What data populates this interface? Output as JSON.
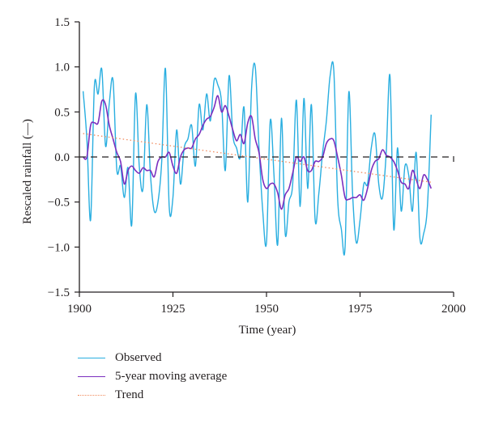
{
  "chart_data": {
    "type": "line",
    "xlabel": "Time (year)",
    "ylabel": "Rescaled rainfall (—)",
    "xlim": [
      1900,
      2000
    ],
    "ylim": [
      -1.5,
      1.5
    ],
    "xticks": [
      "1900",
      "1925",
      "1950",
      "1975",
      "2000"
    ],
    "yticks": [
      "1.5",
      "1.0",
      "0.5",
      "0.0",
      "−0.5",
      "−1.0",
      "−1.5"
    ],
    "zero_line": 0,
    "grid": false,
    "legend_position": "bottom",
    "series": [
      {
        "name": "Observed",
        "color": "#29aee0",
        "style": "solid",
        "x": [
          1901,
          1902,
          1903,
          1904,
          1905,
          1906,
          1907,
          1908,
          1909,
          1910,
          1911,
          1912,
          1913,
          1914,
          1915,
          1916,
          1917,
          1918,
          1919,
          1920,
          1921,
          1922,
          1923,
          1924,
          1925,
          1926,
          1927,
          1928,
          1929,
          1930,
          1931,
          1932,
          1933,
          1934,
          1935,
          1936,
          1937,
          1938,
          1939,
          1940,
          1941,
          1942,
          1943,
          1944,
          1945,
          1946,
          1947,
          1948,
          1949,
          1950,
          1951,
          1952,
          1953,
          1954,
          1955,
          1956,
          1957,
          1958,
          1959,
          1960,
          1961,
          1962,
          1963,
          1964,
          1965,
          1966,
          1967,
          1968,
          1969,
          1970,
          1971,
          1972,
          1973,
          1974,
          1975,
          1976,
          1977,
          1978,
          1979,
          1980,
          1981,
          1982,
          1983,
          1984,
          1985,
          1986,
          1987,
          1988,
          1989,
          1990,
          1991,
          1992,
          1993,
          1994
        ],
        "y": [
          0.73,
          0.2,
          -0.7,
          0.78,
          0.7,
          0.97,
          0.12,
          0.6,
          0.85,
          -0.14,
          -0.1,
          -0.45,
          -0.12,
          -0.75,
          0.7,
          -0.1,
          -0.35,
          0.58,
          -0.2,
          -0.6,
          -0.5,
          -0.05,
          0.98,
          -0.55,
          -0.45,
          0.3,
          -0.3,
          0.1,
          0.2,
          0.35,
          -0.1,
          0.58,
          0.3,
          0.7,
          0.4,
          0.85,
          0.8,
          0.6,
          -0.15,
          0.9,
          0.25,
          0.1,
          0.0,
          0.55,
          -0.5,
          0.75,
          1.0,
          0.1,
          -0.6,
          -0.95,
          0.4,
          -0.2,
          -0.97,
          0.43,
          -0.85,
          -0.5,
          -0.3,
          0.63,
          -0.55,
          0.65,
          -0.35,
          0.58,
          -0.7,
          -0.4,
          0.05,
          0.4,
          0.9,
          0.95,
          -0.45,
          -0.8,
          -1.0,
          0.72,
          -0.4,
          -0.95,
          -0.7,
          -0.3,
          -0.3,
          0.1,
          0.25,
          -0.3,
          -0.45,
          0.05,
          0.9,
          -0.8,
          0.1,
          -0.6,
          -0.1,
          -0.2,
          -0.6,
          0.05,
          -0.9,
          -0.85,
          -0.55,
          0.47
        ]
      },
      {
        "name": "5-year moving average",
        "color": "#7b2fbf",
        "style": "solid",
        "x": [
          1901,
          1902,
          1903,
          1904,
          1905,
          1906,
          1907,
          1908,
          1909,
          1910,
          1911,
          1912,
          1913,
          1914,
          1915,
          1916,
          1917,
          1918,
          1919,
          1920,
          1921,
          1922,
          1923,
          1924,
          1925,
          1926,
          1927,
          1928,
          1929,
          1930,
          1931,
          1932,
          1933,
          1934,
          1935,
          1936,
          1937,
          1938,
          1939,
          1940,
          1941,
          1942,
          1943,
          1944,
          1945,
          1946,
          1947,
          1948,
          1949,
          1950,
          1951,
          1952,
          1953,
          1954,
          1955,
          1956,
          1957,
          1958,
          1959,
          1960,
          1961,
          1962,
          1963,
          1964,
          1965,
          1966,
          1967,
          1968,
          1969,
          1970,
          1971,
          1972,
          1973,
          1974,
          1975,
          1976,
          1977,
          1978,
          1979,
          1980,
          1981,
          1982,
          1983,
          1984,
          1985,
          1986,
          1987,
          1988,
          1989,
          1990,
          1991,
          1992,
          1993,
          1994
        ],
        "y": [
          0.0,
          0.0,
          0.35,
          0.38,
          0.38,
          0.62,
          0.58,
          0.35,
          0.2,
          0.05,
          -0.05,
          -0.3,
          -0.15,
          -0.1,
          -0.15,
          -0.18,
          -0.12,
          -0.15,
          -0.15,
          -0.22,
          -0.05,
          0.0,
          0.0,
          0.05,
          -0.1,
          -0.18,
          0.0,
          0.08,
          0.1,
          0.1,
          0.2,
          0.25,
          0.35,
          0.42,
          0.45,
          0.55,
          0.68,
          0.5,
          0.57,
          0.45,
          0.3,
          0.18,
          0.25,
          0.15,
          0.38,
          0.45,
          0.2,
          0.05,
          -0.25,
          -0.35,
          -0.3,
          -0.3,
          -0.4,
          -0.58,
          -0.42,
          -0.35,
          -0.18,
          0.0,
          -0.05,
          0.0,
          -0.15,
          -0.15,
          -0.05,
          -0.05,
          0.0,
          0.15,
          0.2,
          0.18,
          0.0,
          -0.2,
          -0.45,
          -0.47,
          -0.45,
          -0.45,
          -0.42,
          -0.48,
          -0.35,
          -0.15,
          -0.05,
          -0.02,
          0.08,
          0.02,
          0.0,
          -0.05,
          -0.15,
          -0.28,
          -0.3,
          -0.35,
          -0.15,
          -0.25,
          -0.35,
          -0.2,
          -0.25,
          -0.35
        ]
      },
      {
        "name": "Trend",
        "color": "#f08a5d",
        "style": "dotted",
        "x": [
          1901,
          1994
        ],
        "y": [
          0.26,
          -0.28
        ]
      }
    ]
  }
}
